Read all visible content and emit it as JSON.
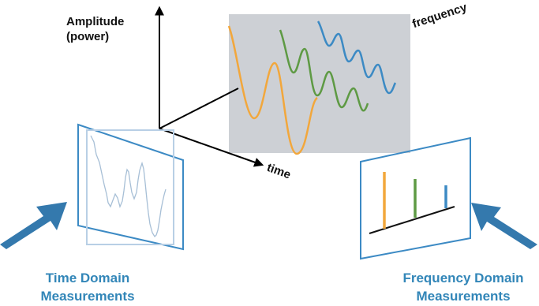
{
  "axes": {
    "amplitude_line1": "Amplitude",
    "amplitude_line2": "(power)",
    "frequency": "frequency",
    "time": "time"
  },
  "captions": {
    "time_domain_line1": "Time Domain",
    "time_domain_line2": "Measurements",
    "frequency_domain_line1": "Frequency Domain",
    "frequency_domain_line2": "Measurements"
  },
  "colors": {
    "caption": "#3286b8",
    "arrow": "#3479ad",
    "plane_fill": "#cdd0d5",
    "wave_orange": "#f2a73c",
    "wave_green": "#5e9a44",
    "wave_blue": "#3c8ac4",
    "axis": "#000000"
  },
  "icons": {
    "time_arrow": "arrow-pointing-up-right",
    "frequency_arrow": "arrow-pointing-up-left"
  }
}
